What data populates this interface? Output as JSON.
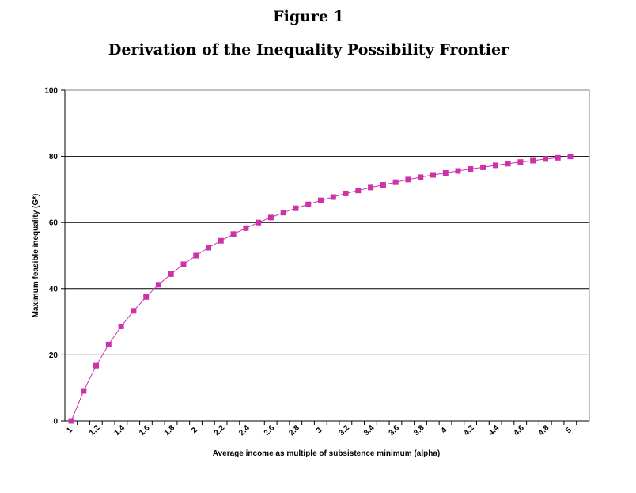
{
  "header": {
    "figure_label": "Figure 1",
    "title": "Derivation of the Inequality Possibility Frontier"
  },
  "colors": {
    "series": "#cc33aa",
    "gridline": "#000000",
    "axis": "#000000"
  },
  "chart_data": {
    "type": "line",
    "title": "Derivation of the Inequality Possibility Frontier",
    "xlabel": "Average income as multiple of subsistence minimum (alpha)",
    "ylabel": "Maximum feasible inequality (G*)",
    "ylim": [
      0,
      100
    ],
    "y_ticks": [
      "0",
      "20",
      "40",
      "60",
      "80",
      "100"
    ],
    "x_tick_labels": [
      "1",
      "1.2",
      "1.4",
      "1.6",
      "1.8",
      "2",
      "2.2",
      "2.4",
      "2.6",
      "2.8",
      "3",
      "3.2",
      "3.4",
      "3.6",
      "3.8",
      "4",
      "4.2",
      "4.4",
      "4.6",
      "4.8",
      "5"
    ],
    "grid": "horizontal",
    "legend": "none",
    "marker": "square",
    "series": [
      {
        "x": [
          1,
          1.1,
          1.2,
          1.3,
          1.4,
          1.5,
          1.6,
          1.7,
          1.8,
          1.9,
          2,
          2.1,
          2.2,
          2.3,
          2.4,
          2.5,
          2.6,
          2.7,
          2.8,
          2.9,
          3,
          3.1,
          3.2,
          3.3,
          3.4,
          3.5,
          3.6,
          3.7,
          3.8,
          3.9,
          4,
          4.1,
          4.2,
          4.3,
          4.4,
          4.5,
          4.6,
          4.7,
          4.8,
          4.9,
          5
        ],
        "values": [
          0,
          9.1,
          16.7,
          23.1,
          28.6,
          33.3,
          37.5,
          41.2,
          44.4,
          47.4,
          50.0,
          52.4,
          54.5,
          56.5,
          58.3,
          60.0,
          61.5,
          63.0,
          64.3,
          65.5,
          66.7,
          67.7,
          68.8,
          69.7,
          70.6,
          71.4,
          72.2,
          73.0,
          73.7,
          74.4,
          75.0,
          75.6,
          76.2,
          76.7,
          77.3,
          77.8,
          78.3,
          78.7,
          79.2,
          79.6,
          80.0
        ]
      }
    ]
  }
}
